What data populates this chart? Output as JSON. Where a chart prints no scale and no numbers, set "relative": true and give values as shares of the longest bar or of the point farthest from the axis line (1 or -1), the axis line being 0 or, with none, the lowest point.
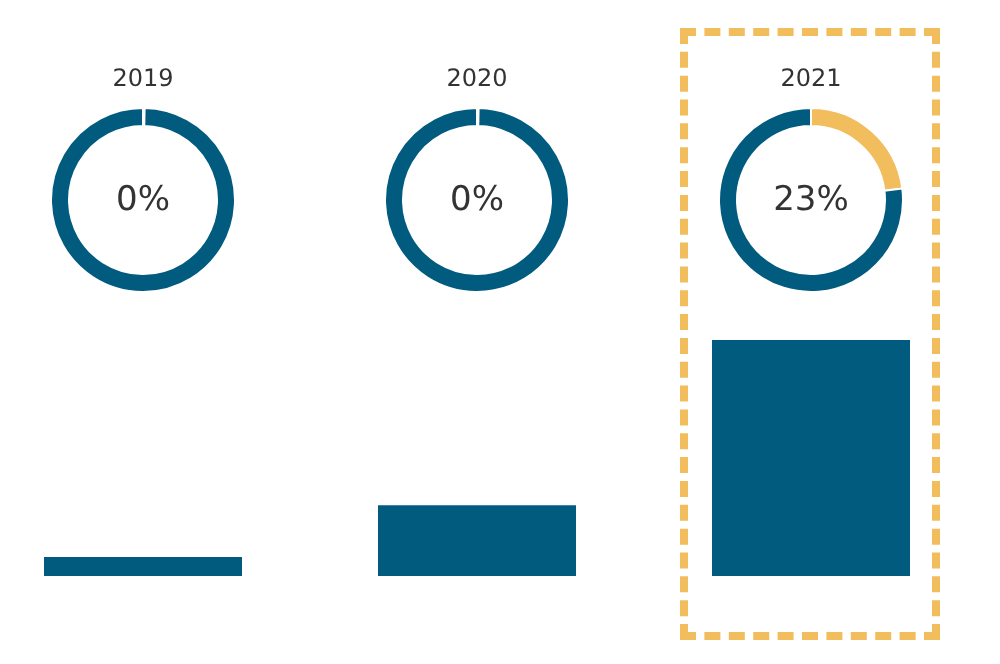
{
  "chart_data": [
    {
      "type": "donut",
      "title": "2019",
      "categories": [
        null,
        null
      ],
      "values": [
        0,
        100
      ],
      "colors": [
        "#f2bd5c",
        "#005b7f"
      ],
      "value_labels": [
        "0%",
        null
      ]
    },
    {
      "type": "donut",
      "title": "2020",
      "categories": [
        null,
        null
      ],
      "values": [
        0,
        100
      ],
      "colors": [
        "#f2bd5c",
        "#005b7f"
      ],
      "value_labels": [
        "0%",
        null
      ]
    },
    {
      "type": "donut",
      "title": "2021",
      "categories": [
        null,
        null
      ],
      "values": [
        23,
        77
      ],
      "colors": [
        "#f2bd5c",
        "#005b7f"
      ],
      "value_labels": [
        "23%",
        null
      ]
    },
    {
      "type": "bar",
      "relative": true,
      "categories": [
        null,
        null,
        null
      ],
      "values": [
        0.08,
        0.3,
        1
      ],
      "color": "#005b7f"
    }
  ]
}
